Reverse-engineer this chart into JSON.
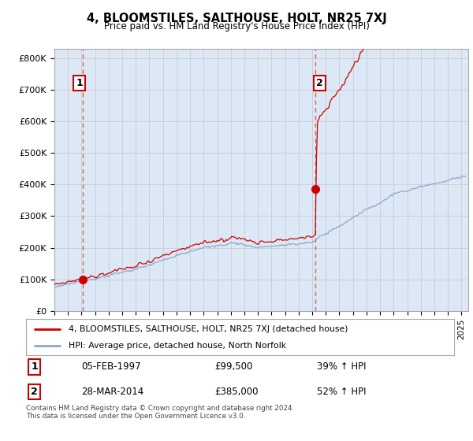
{
  "title": "4, BLOOMSTILES, SALTHOUSE, HOLT, NR25 7XJ",
  "subtitle": "Price paid vs. HM Land Registry's House Price Index (HPI)",
  "ylabel_ticks": [
    "£0",
    "£100K",
    "£200K",
    "£300K",
    "£400K",
    "£500K",
    "£600K",
    "£700K",
    "£800K"
  ],
  "ytick_values": [
    0,
    100000,
    200000,
    300000,
    400000,
    500000,
    600000,
    700000,
    800000
  ],
  "ylim": [
    0,
    830000
  ],
  "xlim_start": 1995.0,
  "xlim_end": 2025.5,
  "sale1_x": 1997.09,
  "sale1_y": 99500,
  "sale2_x": 2014.24,
  "sale2_y": 385000,
  "sale1_label": "1",
  "sale2_label": "2",
  "sale1_date": "05-FEB-1997",
  "sale1_price": "£99,500",
  "sale1_hpi": "39% ↑ HPI",
  "sale2_date": "28-MAR-2014",
  "sale2_price": "£385,000",
  "sale2_hpi": "52% ↑ HPI",
  "legend_line1": "4, BLOOMSTILES, SALTHOUSE, HOLT, NR25 7XJ (detached house)",
  "legend_line2": "HPI: Average price, detached house, North Norfolk",
  "footer": "Contains HM Land Registry data © Crown copyright and database right 2024.\nThis data is licensed under the Open Government Licence v3.0.",
  "line_color_red": "#cc0000",
  "line_color_blue": "#88aacc",
  "bg_fill_color": "#dce8f5",
  "marker_color_red": "#cc0000",
  "background_color": "#ffffff",
  "grid_color": "#cccccc",
  "vline_color": "#dd4444"
}
